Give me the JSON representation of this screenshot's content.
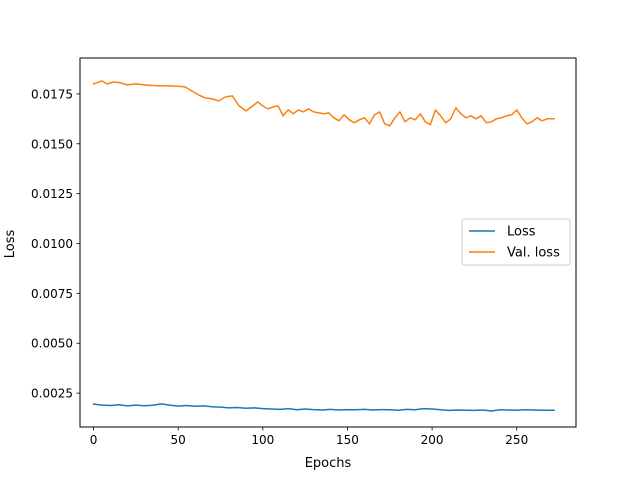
{
  "chart_data": {
    "type": "line",
    "title": "",
    "xlabel": "Epochs",
    "ylabel": "Loss",
    "xlim": [
      -8,
      285
    ],
    "ylim": [
      0.0008,
      0.0193
    ],
    "xticks": [
      0,
      50,
      100,
      150,
      200,
      250
    ],
    "xtick_labels": [
      "0",
      "50",
      "100",
      "150",
      "200",
      "250"
    ],
    "yticks": [
      0.0025,
      0.005,
      0.0075,
      0.01,
      0.0125,
      0.015,
      0.0175
    ],
    "ytick_labels": [
      "0.0025",
      "0.0050",
      "0.0075",
      "0.0100",
      "0.0125",
      "0.0150",
      "0.0175"
    ],
    "grid": false,
    "legend": "center-right",
    "series": [
      {
        "name": "Loss",
        "color": "#1f77b4",
        "x": [
          0,
          5,
          10,
          15,
          20,
          25,
          30,
          35,
          40,
          45,
          50,
          55,
          60,
          65,
          70,
          75,
          80,
          85,
          90,
          95,
          100,
          105,
          110,
          115,
          120,
          125,
          130,
          135,
          140,
          145,
          150,
          155,
          160,
          165,
          170,
          175,
          180,
          185,
          190,
          195,
          200,
          205,
          210,
          215,
          220,
          225,
          230,
          235,
          240,
          245,
          250,
          255,
          260,
          265,
          272
        ],
        "values": [
          0.00195,
          0.0019,
          0.00188,
          0.00192,
          0.00186,
          0.0019,
          0.00187,
          0.00189,
          0.00196,
          0.0019,
          0.00185,
          0.00188,
          0.00184,
          0.00186,
          0.00182,
          0.0018,
          0.00176,
          0.00178,
          0.00174,
          0.00176,
          0.00172,
          0.0017,
          0.00168,
          0.00172,
          0.00166,
          0.0017,
          0.00167,
          0.00165,
          0.00168,
          0.00165,
          0.00167,
          0.00166,
          0.00168,
          0.00165,
          0.00167,
          0.00166,
          0.00164,
          0.00168,
          0.00166,
          0.00172,
          0.0017,
          0.00166,
          0.00163,
          0.00165,
          0.00164,
          0.00163,
          0.00165,
          0.0016,
          0.00166,
          0.00165,
          0.00164,
          0.00166,
          0.00165,
          0.00164,
          0.00164
        ]
      },
      {
        "name": "Val. loss",
        "color": "#ff7f0e",
        "x": [
          0,
          5,
          8,
          12,
          16,
          20,
          25,
          30,
          35,
          40,
          45,
          50,
          54,
          58,
          62,
          66,
          70,
          74,
          78,
          82,
          86,
          90,
          94,
          97,
          100,
          103,
          106,
          109,
          112,
          115,
          118,
          121,
          124,
          127,
          130,
          133,
          136,
          139,
          142,
          145,
          148,
          151,
          154,
          157,
          160,
          163,
          166,
          169,
          172,
          175,
          178,
          181,
          184,
          187,
          190,
          193,
          196,
          199,
          202,
          205,
          208,
          211,
          214,
          217,
          220,
          223,
          226,
          229,
          232,
          235,
          238,
          241,
          244,
          247,
          250,
          253,
          256,
          259,
          262,
          265,
          268,
          272
        ],
        "values": [
          0.018,
          0.01815,
          0.018,
          0.0181,
          0.01805,
          0.01795,
          0.018,
          0.01795,
          0.01792,
          0.0179,
          0.0179,
          0.01788,
          0.01785,
          0.01765,
          0.01745,
          0.0173,
          0.01725,
          0.01715,
          0.01735,
          0.0174,
          0.0169,
          0.01665,
          0.0169,
          0.0171,
          0.0169,
          0.01675,
          0.01685,
          0.0169,
          0.0164,
          0.0167,
          0.0165,
          0.0167,
          0.0166,
          0.01675,
          0.0166,
          0.01655,
          0.0165,
          0.01655,
          0.0163,
          0.01615,
          0.01645,
          0.0162,
          0.01605,
          0.0162,
          0.0163,
          0.016,
          0.01645,
          0.0166,
          0.016,
          0.0159,
          0.0163,
          0.0166,
          0.0161,
          0.0163,
          0.0162,
          0.0165,
          0.0161,
          0.01595,
          0.0167,
          0.0164,
          0.01605,
          0.01625,
          0.0168,
          0.0165,
          0.0163,
          0.0164,
          0.01625,
          0.0164,
          0.01605,
          0.0161,
          0.01625,
          0.0163,
          0.0164,
          0.01645,
          0.0167,
          0.0163,
          0.016,
          0.0161,
          0.0163,
          0.01615,
          0.01625,
          0.01625
        ]
      }
    ]
  }
}
